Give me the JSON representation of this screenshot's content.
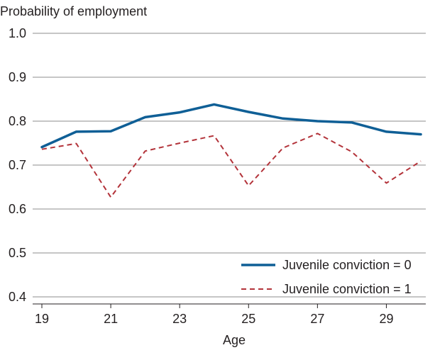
{
  "chart_data": {
    "type": "line",
    "title": "",
    "ylabel": "Probability of employment",
    "xlabel": "Age",
    "x": [
      19,
      20,
      21,
      22,
      23,
      24,
      25,
      26,
      27,
      28,
      29,
      30
    ],
    "xlim": [
      19,
      30
    ],
    "ylim": [
      0.4,
      1.0
    ],
    "x_ticks": [
      19,
      21,
      23,
      25,
      27,
      29
    ],
    "x_tick_labels": [
      "19",
      "21",
      "23",
      "25",
      "27",
      "29"
    ],
    "y_ticks": [
      0.4,
      0.5,
      0.6,
      0.7,
      0.8,
      0.9,
      1.0
    ],
    "y_tick_labels": [
      "0.4",
      "0.5",
      "0.6",
      "0.7",
      "0.8",
      "0.9",
      "1.0"
    ],
    "grid": "horizontal",
    "legend_position": "bottom-right",
    "series": [
      {
        "name": "Juvenile conviction = 0",
        "style": "solid",
        "color": "#0f5f96",
        "values": [
          0.741,
          0.776,
          0.777,
          0.809,
          0.82,
          0.838,
          0.821,
          0.806,
          0.8,
          0.797,
          0.776,
          0.77
        ]
      },
      {
        "name": "Juvenile conviction = 1",
        "style": "dashed",
        "color": "#b3333a",
        "values": [
          0.736,
          0.749,
          0.627,
          0.732,
          0.75,
          0.767,
          0.653,
          0.739,
          0.772,
          0.73,
          0.659,
          0.709
        ]
      }
    ]
  }
}
